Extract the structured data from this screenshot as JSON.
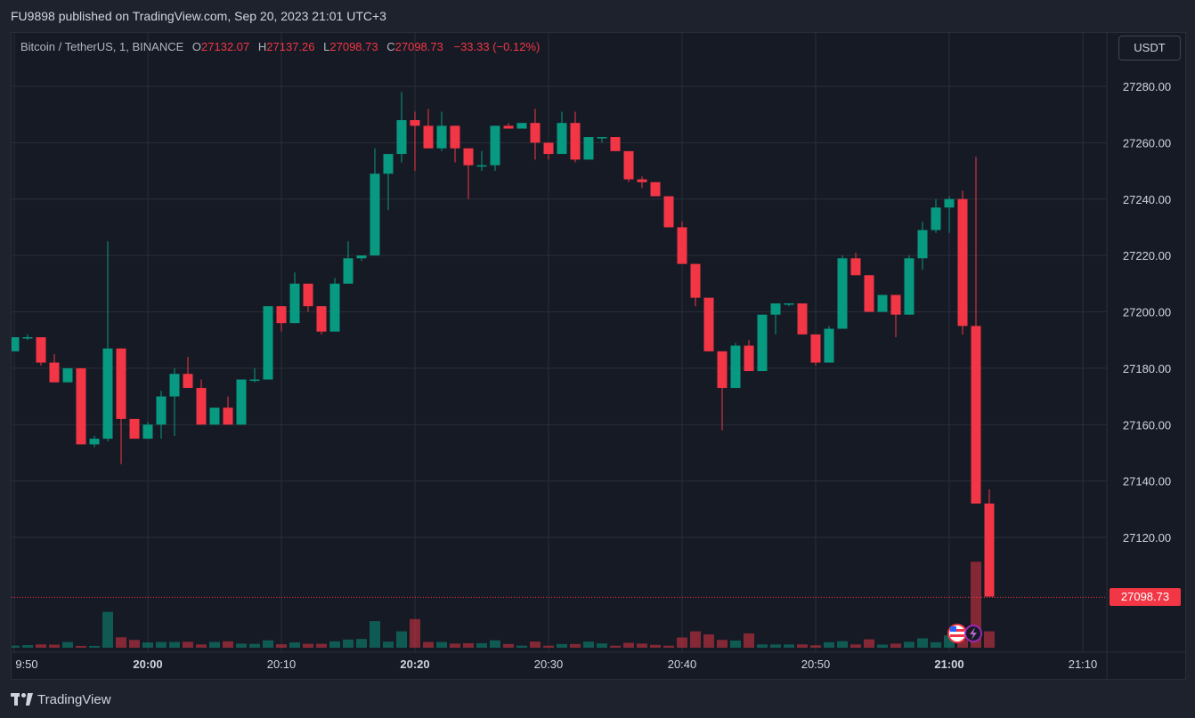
{
  "header": {
    "published_text": "FU9898 published on TradingView.com, Sep 20, 2023 21:01 UTC+3"
  },
  "legend": {
    "symbol": "Bitcoin / TetherUS, 1, BINANCE",
    "open_label": "O",
    "open_value": "27132.07",
    "high_label": "H",
    "high_value": "27137.26",
    "low_label": "L",
    "low_value": "27098.73",
    "close_label": "C",
    "close_value": "27098.73",
    "change": "−33.33 (−0.12%)"
  },
  "currency_button": "USDT",
  "last_price_label": "27098.73",
  "footer": {
    "brand": "TradingView"
  },
  "colors": {
    "up": "#089981",
    "down": "#f23645",
    "grid": "#2a2e39",
    "background": "#161a25"
  },
  "chart_data": {
    "type": "candlestick",
    "y_axis": {
      "range": [
        27080,
        27295
      ],
      "ticks": [
        "27280.00",
        "27260.00",
        "27240.00",
        "27220.00",
        "27200.00",
        "27180.00",
        "27160.00",
        "27140.00",
        "27120.00"
      ]
    },
    "x_axis": {
      "ticks": [
        {
          "label": "9:50",
          "index": 0
        },
        {
          "label": "20:00",
          "index": 10
        },
        {
          "label": "20:10",
          "index": 20
        },
        {
          "label": "20:20",
          "index": 30
        },
        {
          "label": "20:30",
          "index": 40
        },
        {
          "label": "20:40",
          "index": 50
        },
        {
          "label": "20:50",
          "index": 60
        },
        {
          "label": "21:00",
          "index": 70
        },
        {
          "label": "21:10",
          "index": 80
        }
      ]
    },
    "last_price": 27098.73,
    "ohlc": [
      [
        27186,
        27191,
        27186,
        27191
      ],
      [
        27191,
        27192,
        27190,
        27191
      ],
      [
        27191,
        27191,
        27181,
        27182
      ],
      [
        27182,
        27185,
        27175,
        27175
      ],
      [
        27175,
        27180,
        27175,
        27180
      ],
      [
        27180,
        27180,
        27153,
        27153
      ],
      [
        27153,
        27156,
        27152,
        27155
      ],
      [
        27155,
        27225,
        27154,
        27187
      ],
      [
        27187,
        27187,
        27146,
        27162
      ],
      [
        27162,
        27162,
        27155,
        27155
      ],
      [
        27155,
        27161,
        27155,
        27160
      ],
      [
        27160,
        27172,
        27155,
        27170
      ],
      [
        27170,
        27180,
        27156,
        27178
      ],
      [
        27178,
        27184,
        27175,
        27173
      ],
      [
        27173,
        27176,
        27160,
        27160
      ],
      [
        27160,
        27166,
        27160,
        27166
      ],
      [
        27166,
        27170,
        27162,
        27160
      ],
      [
        27160,
        27176,
        27160,
        27176
      ],
      [
        27176,
        27180,
        27175,
        27176
      ],
      [
        27176,
        27202,
        27176,
        27202
      ],
      [
        27202,
        27202,
        27193,
        27196
      ],
      [
        27196,
        27214,
        27196,
        27210
      ],
      [
        27210,
        27210,
        27200,
        27202
      ],
      [
        27202,
        27202,
        27192,
        27193
      ],
      [
        27193,
        27212,
        27193,
        27210
      ],
      [
        27210,
        27225,
        27210,
        27219
      ],
      [
        27219,
        27220,
        27218,
        27220
      ],
      [
        27220,
        27258,
        27220,
        27249
      ],
      [
        27249,
        27256,
        27236,
        27256
      ],
      [
        27256,
        27278,
        27253,
        27268
      ],
      [
        27268,
        27271,
        27250,
        27266
      ],
      [
        27266,
        27272,
        27258,
        27258
      ],
      [
        27258,
        27271,
        27257,
        27266
      ],
      [
        27266,
        27266,
        27253,
        27258
      ],
      [
        27258,
        27258,
        27240,
        27252
      ],
      [
        27252,
        27257,
        27250,
        27252
      ],
      [
        27252,
        27266,
        27250,
        27266
      ],
      [
        27266,
        27267,
        27265,
        27265
      ],
      [
        27265,
        27266,
        27265,
        27267
      ],
      [
        27267,
        27272,
        27254,
        27260
      ],
      [
        27260,
        27260,
        27254,
        27256
      ],
      [
        27256,
        27271,
        27256,
        27267
      ],
      [
        27267,
        27271,
        27253,
        27254
      ],
      [
        27254,
        27262,
        27254,
        27262
      ],
      [
        27262,
        27262,
        27260,
        27262
      ],
      [
        27262,
        27262,
        27257,
        27257
      ],
      [
        27257,
        27257,
        27246,
        27247
      ],
      [
        27247,
        27248,
        27244,
        27246
      ],
      [
        27246,
        27246,
        27242,
        27241
      ],
      [
        27241,
        27241,
        27230,
        27230
      ],
      [
        27230,
        27232,
        27217,
        27217
      ],
      [
        27217,
        27217,
        27202,
        27205
      ],
      [
        27205,
        27205,
        27186,
        27186
      ],
      [
        27186,
        27186,
        27158,
        27173
      ],
      [
        27173,
        27189,
        27173,
        27188
      ],
      [
        27188,
        27190,
        27179,
        27179
      ],
      [
        27179,
        27199,
        27179,
        27199
      ],
      [
        27199,
        27203,
        27192,
        27203
      ],
      [
        27203,
        27203,
        27202,
        27203
      ],
      [
        27203,
        27203,
        27192,
        27192
      ],
      [
        27192,
        27192,
        27181,
        27182
      ],
      [
        27182,
        27195,
        27182,
        27194
      ],
      [
        27194,
        27220,
        27194,
        27219
      ],
      [
        27219,
        27221,
        27213,
        27213
      ],
      [
        27213,
        27213,
        27200,
        27200
      ],
      [
        27200,
        27206,
        27200,
        27206
      ],
      [
        27206,
        27206,
        27191,
        27199
      ],
      [
        27199,
        27220,
        27199,
        27219
      ],
      [
        27219,
        27232,
        27215,
        27229
      ],
      [
        27229,
        27240,
        27228,
        27237
      ],
      [
        27237,
        27241,
        27228,
        27240
      ],
      [
        27240,
        27243,
        27192,
        27195
      ],
      [
        27195,
        27255,
        27132,
        27132
      ],
      [
        27132,
        27137,
        27099,
        27099
      ]
    ],
    "volume": [
      1.0,
      1.3,
      1.6,
      1.5,
      2.8,
      0.9,
      0.9,
      17.5,
      5.1,
      3.8,
      2.6,
      2.8,
      2.8,
      2.9,
      1.6,
      2.8,
      3.1,
      2.0,
      1.9,
      3.6,
      1.7,
      2.6,
      1.9,
      1.9,
      3.1,
      4.0,
      4.3,
      13.0,
      3.0,
      8.0,
      14.0,
      2.8,
      2.8,
      2.0,
      2.2,
      2.2,
      3.6,
      1.8,
      1.0,
      3.0,
      1.0,
      1.8,
      1.8,
      3.0,
      2.1,
      1.0,
      2.4,
      2.0,
      1.4,
      1.0,
      5.0,
      8.0,
      6.5,
      3.8,
      3.5,
      7.0,
      1.6,
      1.6,
      1.6,
      1.6,
      1.2,
      2.7,
      3.2,
      1.6,
      4.1,
      1.5,
      2.0,
      2.9,
      4.6,
      2.7,
      6.0,
      3.8,
      42.0,
      8.0
    ]
  }
}
